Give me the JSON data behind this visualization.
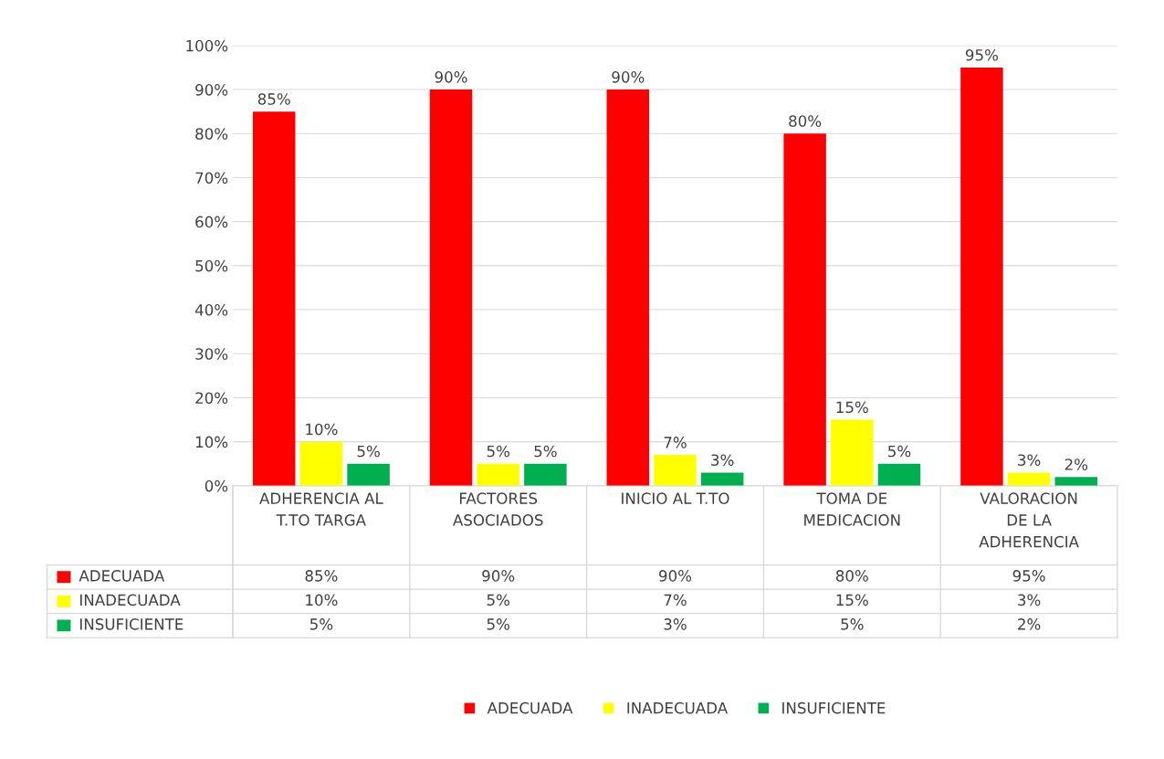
{
  "chart_data": {
    "type": "bar",
    "categories": [
      "ADHERENCIA AL\nT.TO TARGA",
      "FACTORES\nASOCIADOS",
      "INICIO AL T.TO",
      "TOMA DE\nMEDICACION",
      "VALORACION\nDE LA\nADHERENCIA"
    ],
    "series": [
      {
        "name": "ADECUADA",
        "color": "#ff0000",
        "values": [
          85,
          90,
          90,
          80,
          95
        ],
        "value_labels": [
          "85%",
          "90%",
          "90%",
          "80%",
          "95%"
        ]
      },
      {
        "name": "INADECUADA",
        "color": "#ffff00",
        "values": [
          10,
          5,
          7,
          15,
          3
        ],
        "value_labels": [
          "10%",
          "5%",
          "7%",
          "15%",
          "3%"
        ]
      },
      {
        "name": "INSUFICIENTE",
        "color": "#00b050",
        "values": [
          5,
          5,
          3,
          5,
          2
        ],
        "value_labels": [
          "5%",
          "5%",
          "3%",
          "5%",
          "2%"
        ]
      }
    ],
    "ylim": [
      0,
      100
    ],
    "yticks": [
      {
        "value": 0,
        "label": "0%"
      },
      {
        "value": 10,
        "label": "10%"
      },
      {
        "value": 20,
        "label": "20%"
      },
      {
        "value": 30,
        "label": "30%"
      },
      {
        "value": 40,
        "label": "40%"
      },
      {
        "value": 50,
        "label": "50%"
      },
      {
        "value": 60,
        "label": "60%"
      },
      {
        "value": 70,
        "label": "70%"
      },
      {
        "value": 80,
        "label": "80%"
      },
      {
        "value": 90,
        "label": "90%"
      },
      {
        "value": 100,
        "label": "100%"
      }
    ],
    "grid": "y",
    "legend": "bottom"
  }
}
